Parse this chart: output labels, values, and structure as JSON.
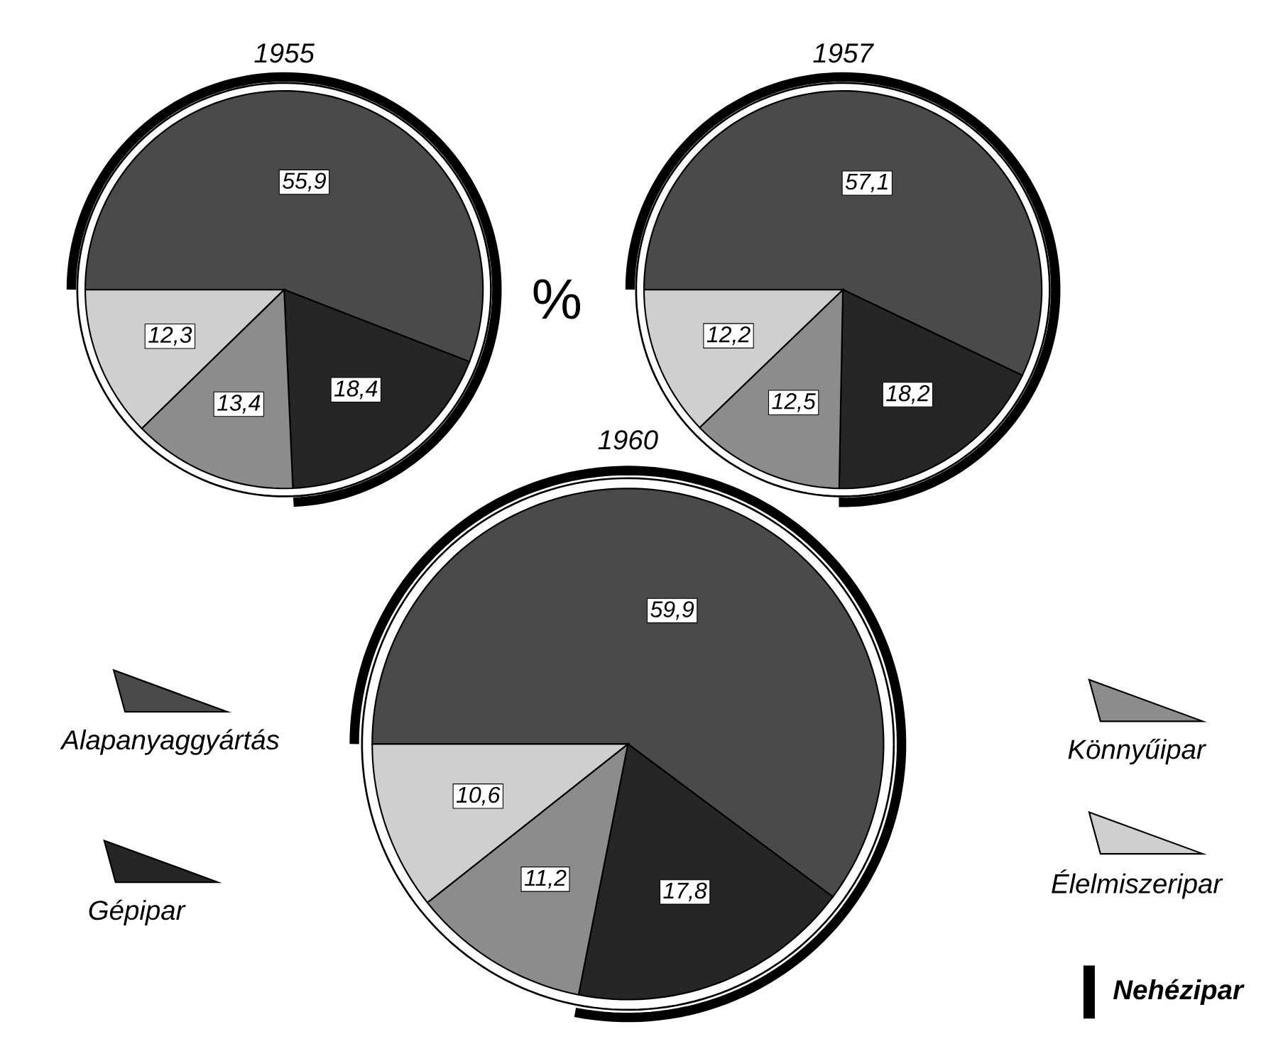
{
  "chart_data": [
    {
      "type": "pie",
      "title": "1955",
      "categories": [
        null,
        null,
        null,
        null
      ],
      "values": [
        55.9,
        18.4,
        13.4,
        12.3
      ],
      "value_labels": [
        "55,9",
        "18,4",
        "13,4",
        "12,3"
      ],
      "colors": [
        "#4a4a4a",
        "#262626",
        "#8c8c8c",
        "#cfcfcf"
      ]
    },
    {
      "type": "pie",
      "title": "1957",
      "categories": [
        null,
        null,
        null,
        null
      ],
      "values": [
        57.1,
        18.2,
        12.5,
        12.2
      ],
      "value_labels": [
        "57,1",
        "18,2",
        "12,5",
        "12,2"
      ],
      "colors": [
        "#4a4a4a",
        "#262626",
        "#8c8c8c",
        "#cfcfcf"
      ]
    },
    {
      "type": "pie",
      "title": "1960",
      "categories": [
        "Alapanyaggyártás",
        "Gépipar",
        "Könnyűipar",
        "Élelmiszeripar"
      ],
      "values": [
        59.9,
        17.8,
        11.2,
        10.6
      ],
      "value_labels": [
        "59,9",
        "17,8",
        "11,2",
        "10,6"
      ],
      "colors": [
        "#4a4a4a",
        "#262626",
        "#8c8c8c",
        "#cfcfcf"
      ],
      "legend": "bottom",
      "annotations": [
        "%",
        "Nehézipar"
      ]
    }
  ]
}
